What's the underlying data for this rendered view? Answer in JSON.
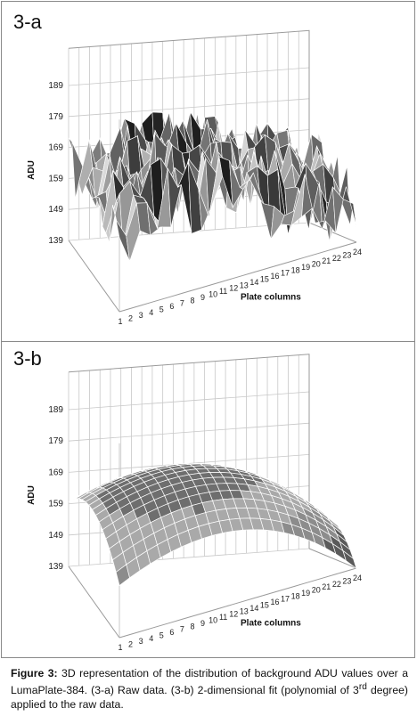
{
  "chart_data": [
    {
      "type": "surface",
      "panel_label": "3-a",
      "ylabel": "ADU",
      "xlabel": "Plate columns",
      "yticks": [
        "139",
        "149",
        "159",
        "169",
        "179",
        "189"
      ],
      "ylim": [
        139,
        189
      ],
      "xticks": [
        "1",
        "2",
        "3",
        "4",
        "5",
        "6",
        "7",
        "8",
        "9",
        "10",
        "11",
        "12",
        "13",
        "14",
        "15",
        "16",
        "17",
        "18",
        "19",
        "20",
        "21",
        "22",
        "23",
        "24"
      ],
      "grid": true,
      "description_values": "raw background ADU per well, 16 rows x 24 columns, range approx 139-180"
    },
    {
      "type": "surface",
      "panel_label": "3-b",
      "ylabel": "ADU",
      "xlabel": "Plate columns",
      "yticks": [
        "139",
        "149",
        "159",
        "169",
        "179",
        "189"
      ],
      "ylim": [
        139,
        189
      ],
      "xticks": [
        "1",
        "2",
        "3",
        "4",
        "5",
        "6",
        "7",
        "8",
        "9",
        "10",
        "11",
        "12",
        "13",
        "14",
        "15",
        "16",
        "17",
        "18",
        "19",
        "20",
        "21",
        "22",
        "23",
        "24"
      ],
      "grid": true,
      "fit": "polynomial 3rd degree, dome shape peaking near 175 at plate centre"
    }
  ],
  "caption": {
    "label": "Figure 3:",
    "text": " 3D representation of the distribution of background ADU values over a LumaPlate-384. (3-a) Raw data. (3-b) 2-dimensional fit (polynomial of 3",
    "superscript": "rd",
    "text_end": " degree) applied to the raw data."
  }
}
